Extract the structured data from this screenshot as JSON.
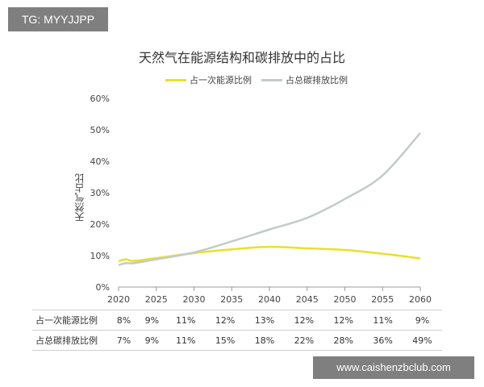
{
  "watermark_top": "TG: MYYJJPP",
  "watermark_bottom": "www.caishenzbclub.com",
  "chart_data": {
    "type": "line",
    "title": "天然气在能源结构和碳排放中的占比",
    "ylabel": "天然气占比",
    "xlabel": "",
    "y_ticks": [
      "0%",
      "10%",
      "20%",
      "30%",
      "40%",
      "50%",
      "60%"
    ],
    "ylim": [
      0,
      60
    ],
    "x_ticks": [
      "2020",
      "2025",
      "2030",
      "2035",
      "2040",
      "2045",
      "2050",
      "2055",
      "2060"
    ],
    "xlim": [
      2020,
      2060
    ],
    "legend_position": "top-center",
    "grid": false,
    "series": [
      {
        "name": "占一次能源比例",
        "color": "#e8e02a",
        "x": [
          2020,
          2021,
          2022,
          2025,
          2030,
          2035,
          2040,
          2045,
          2050,
          2055,
          2060
        ],
        "y": [
          8.2,
          8.8,
          8.3,
          9.2,
          10.8,
          12.0,
          12.8,
          12.3,
          11.8,
          10.6,
          9.1
        ]
      },
      {
        "name": "占总碳排放比例",
        "color": "#c3cbc8",
        "x": [
          2020,
          2021,
          2022,
          2025,
          2030,
          2035,
          2040,
          2045,
          2050,
          2055,
          2060
        ],
        "y": [
          7.0,
          7.6,
          7.6,
          8.8,
          11.0,
          14.5,
          18.3,
          22.0,
          28.0,
          35.5,
          49.0
        ]
      }
    ],
    "table": {
      "rows": [
        {
          "label": "占一次能源比例",
          "values": [
            "8%",
            "9%",
            "11%",
            "12%",
            "13%",
            "12%",
            "12%",
            "11%",
            "9%"
          ]
        },
        {
          "label": "占总碳排放比例",
          "values": [
            "7%",
            "9%",
            "11%",
            "15%",
            "18%",
            "22%",
            "28%",
            "36%",
            "49%"
          ]
        }
      ]
    }
  }
}
